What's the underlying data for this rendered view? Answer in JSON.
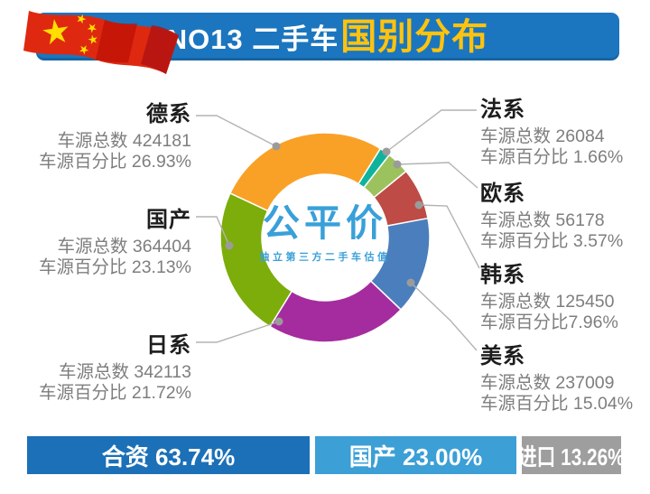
{
  "header": {
    "title_prefix": "NO13 二手车",
    "title_highlight": "国别分布",
    "banner_color": "#1B76BF",
    "highlight_color": "#FFC30E"
  },
  "logo": {
    "name": "公平价",
    "tagline": "独立第三方二手车估值",
    "color": "#39A0D9"
  },
  "chart_data": {
    "type": "donut",
    "title": "NO13 二手车国别分布",
    "start_angle_deg": 155,
    "direction": "clockwise",
    "inner_radius_ratio": 0.6,
    "count_label": "车源总数",
    "percent_label": "车源百分比",
    "segments": [
      {
        "label": "德系",
        "count": 424181,
        "percent": 26.93,
        "color": "#F9A127"
      },
      {
        "label": "法系",
        "count": 26084,
        "percent": 1.66,
        "color": "#0FB39C"
      },
      {
        "label": "欧系",
        "count": 56178,
        "percent": 3.57,
        "color": "#9CC25E"
      },
      {
        "label": "韩系",
        "count": 125450,
        "percent": 7.96,
        "color": "#BE4B45"
      },
      {
        "label": "美系",
        "count": 237009,
        "percent": 15.04,
        "color": "#4B7EBC"
      },
      {
        "label": "日系",
        "count": 342113,
        "percent": 21.72,
        "color": "#A52C9E"
      },
      {
        "label": "国产",
        "count": 364404,
        "percent": 23.13,
        "color": "#7CAD0B"
      }
    ]
  },
  "callouts": {
    "left": [
      {
        "title": "德系",
        "line1": "车源总数 424181",
        "line2": "车源百分比 26.93%"
      },
      {
        "title": "国产",
        "line1": "车源总数 364404",
        "line2": "车源百分比 23.13%"
      },
      {
        "title": "日系",
        "line1": "车源总数 342113",
        "line2": "车源百分比 21.72%"
      }
    ],
    "right": [
      {
        "title": "法系",
        "line1": "车源总数 26084",
        "line2": "车源百分比 1.66%"
      },
      {
        "title": "欧系",
        "line1": "车源总数 56178",
        "line2": "车源百分比 3.57%"
      },
      {
        "title": "韩系",
        "line1": "车源总数 125450",
        "line2": "车源百分比7.96%"
      },
      {
        "title": "美系",
        "line1": "车源总数 237009",
        "line2": "车源百分比 15.04%"
      }
    ]
  },
  "footer": {
    "items": [
      {
        "label": "合资 63.74%",
        "color": "#1C70B7"
      },
      {
        "label": "国产 23.00%",
        "color": "#3C9FD6"
      },
      {
        "label": "进口 13.26%",
        "color": "#9E9E9E"
      }
    ]
  }
}
